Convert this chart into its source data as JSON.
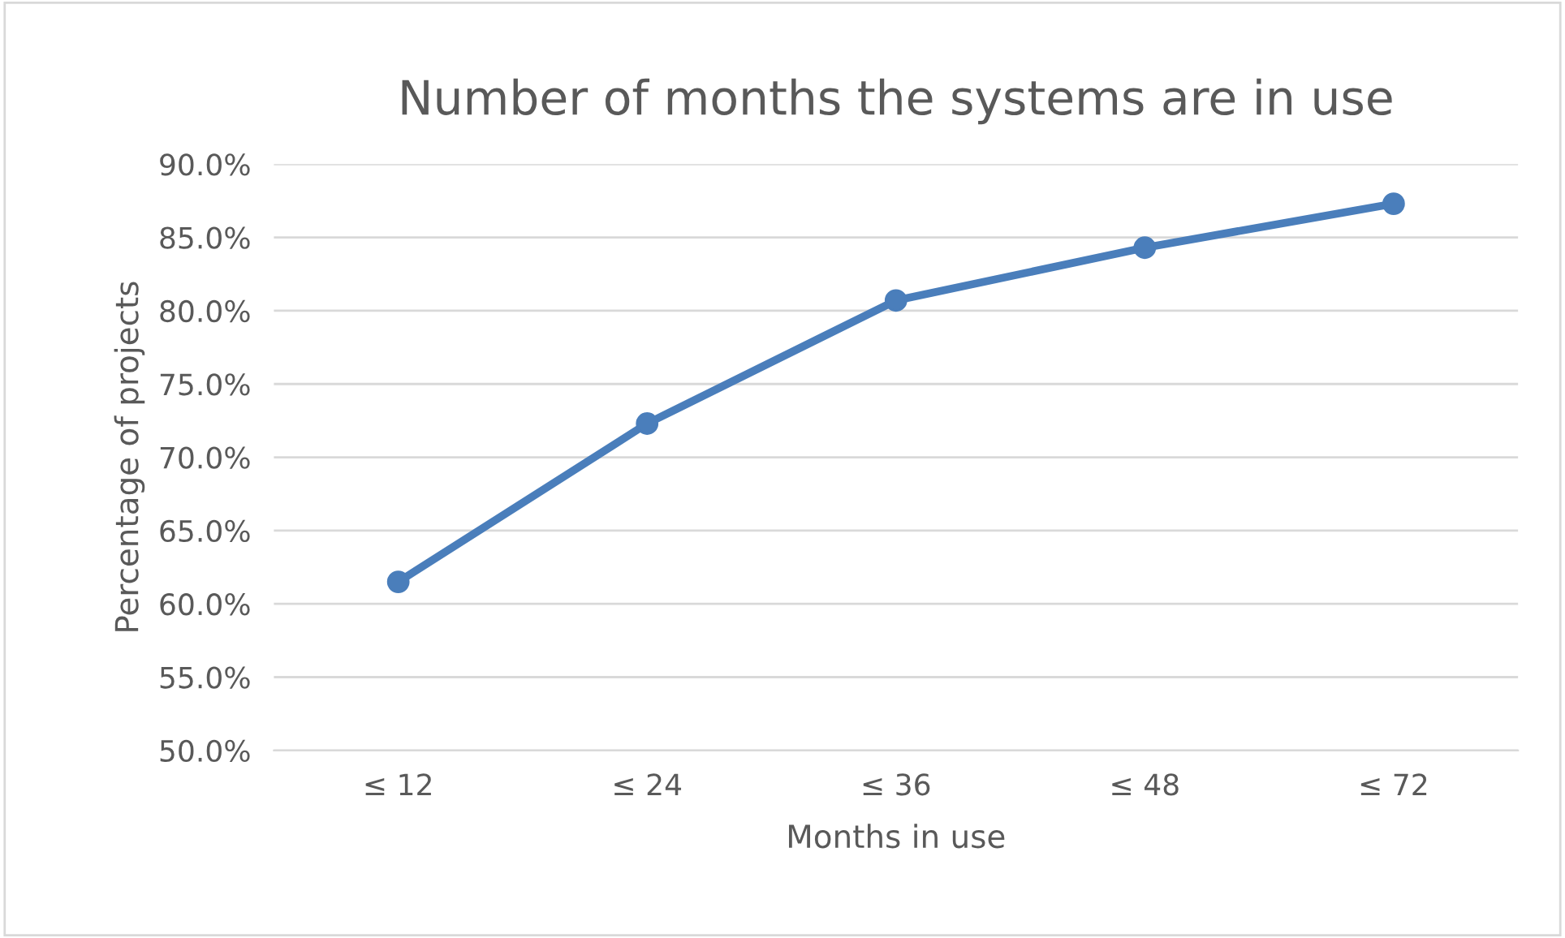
{
  "chart_data": {
    "type": "line",
    "title": "Number of months the systems are in use",
    "xlabel": "Months in use",
    "ylabel": "Percentage of projects",
    "categories": [
      "≤ 12",
      "≤ 24",
      "≤ 36",
      "≤ 48",
      "≤ 72"
    ],
    "series": [
      {
        "color": "#4a7ebb",
        "values": [
          61.5,
          72.3,
          80.7,
          84.3,
          87.3
        ]
      }
    ],
    "ylim": [
      50,
      90
    ],
    "yticks": [
      {
        "value": 50,
        "label": "50.0%"
      },
      {
        "value": 55,
        "label": "55.0%"
      },
      {
        "value": 60,
        "label": "60.0%"
      },
      {
        "value": 65,
        "label": "65.0%"
      },
      {
        "value": 70,
        "label": "70.0%"
      },
      {
        "value": 75,
        "label": "75.0%"
      },
      {
        "value": 80,
        "label": "80.0%"
      },
      {
        "value": 85,
        "label": "85.0%"
      },
      {
        "value": 90,
        "label": "90.0%"
      }
    ],
    "grid": "y",
    "marker": "circle",
    "line_style": "solid",
    "legend": false
  }
}
